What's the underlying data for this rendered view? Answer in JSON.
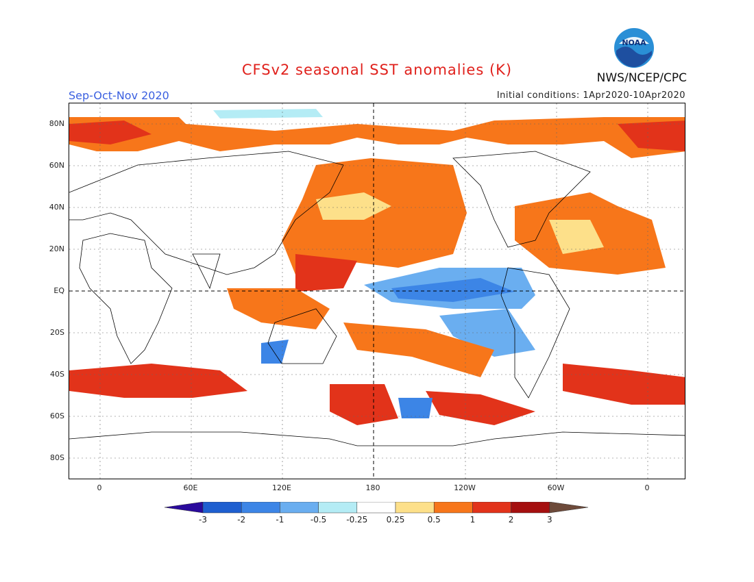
{
  "header": {
    "title": "CFSv2 seasonal SST anomalies (K)",
    "period": "Sep-Oct-Nov 2020",
    "initial_conditions": "Initial conditions: 1Apr2020-10Apr2020",
    "agency": "NWS/NCEP/CPC",
    "logo_text": "NOAA"
  },
  "map": {
    "lat_labels": [
      "80N",
      "60N",
      "40N",
      "20N",
      "EQ",
      "20S",
      "40S",
      "60S",
      "80S"
    ],
    "lon_labels": [
      "0",
      "60E",
      "120E",
      "180",
      "120W",
      "60W",
      "0"
    ]
  },
  "colorbar": {
    "labels": [
      "-3",
      "-2",
      "-1",
      "-0.5",
      "-0.25",
      "0.25",
      "0.5",
      "1",
      "2",
      "3"
    ],
    "colors": [
      "#2a0a9c",
      "#1e5fd0",
      "#3c85e6",
      "#6aaef0",
      "#b4ecf5",
      "#ffffff",
      "#fde08a",
      "#f7761a",
      "#e2331a",
      "#a50f0f",
      "#6d4a3a"
    ]
  }
}
